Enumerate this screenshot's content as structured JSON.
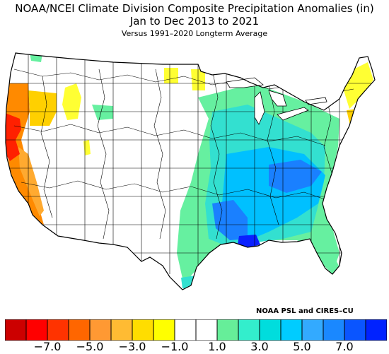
{
  "title_line1": "NOAA/NCEI Climate Division Composite Precipitation Anomalies (in)",
  "title_line2": "Jan to Dec 2013 to 2021",
  "title_line3": "Versus 1991–2020 Longterm Average",
  "credit": "NOAA PSL and CIRES–CU",
  "colors": {
    "outline": "#000000",
    "no_anomaly": "#ffffff",
    "dry_strong": "#ff2000",
    "dry_mid": "#ff8a00",
    "dry_light": "#ffd000",
    "dry_faint": "#ffff33",
    "wet_faint": "#66f0a0",
    "wet_light": "#33e0d0",
    "wet_mid": "#00c0ff",
    "wet_strong": "#1a80ff",
    "wet_max": "#0a20ff"
  },
  "legend": {
    "colors": [
      "#cc0000",
      "#ff0000",
      "#ff3300",
      "#ff6600",
      "#ff9933",
      "#ffbb33",
      "#ffdd00",
      "#ffff00",
      "#ffffff",
      "#ffffff",
      "#66ee99",
      "#33eecc",
      "#00dddd",
      "#00ccff",
      "#33aaff",
      "#1a88ff",
      "#0a55ff",
      "#0022ff"
    ],
    "ticks": [
      {
        "label": "−7.0",
        "pos": 1
      },
      {
        "label": "−5.0",
        "pos": 3
      },
      {
        "label": "−3.0",
        "pos": 5
      },
      {
        "label": "−1.0",
        "pos": 7
      },
      {
        "label": "1.0",
        "pos": 9
      },
      {
        "label": "3.0",
        "pos": 11
      },
      {
        "label": "5.0",
        "pos": 13
      },
      {
        "label": "7.0",
        "pos": 15
      }
    ]
  }
}
